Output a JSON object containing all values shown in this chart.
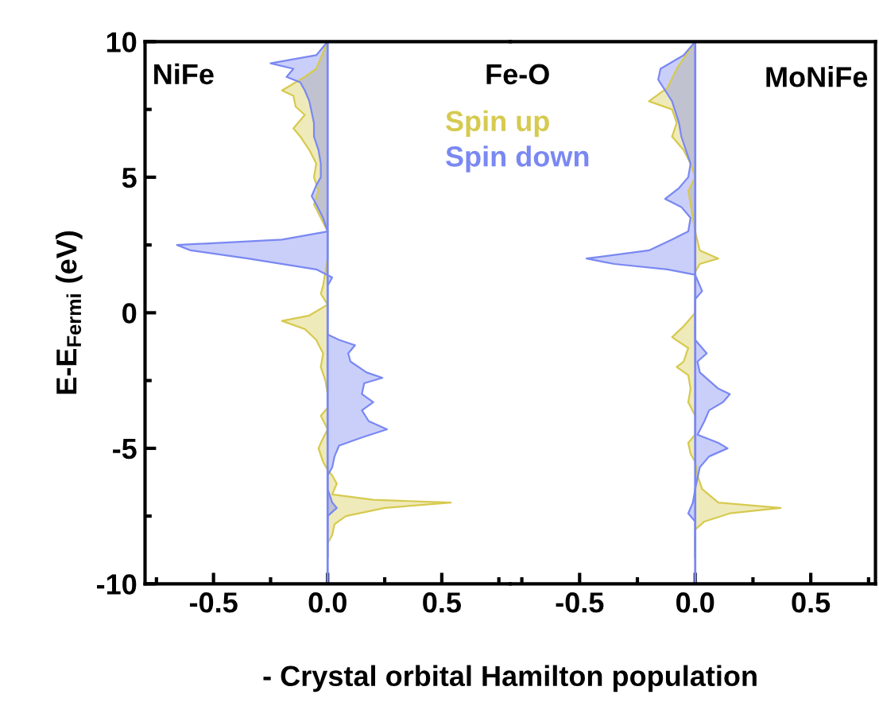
{
  "chart_data": [
    {
      "type": "area",
      "orientation": "horizontal",
      "title": "Fe-O",
      "xlabel": "- Crystal orbital Hamilton population",
      "ylabel": "E-E$_{Fermi}$ (eV)",
      "annotations": [
        "NiFe"
      ],
      "legend": "top right",
      "xlim": [
        -0.8,
        0.8
      ],
      "xticks": [
        {
          "value": -0.75,
          "label": null
        },
        {
          "value": -0.5,
          "label": "-0.5"
        },
        {
          "value": -0.25,
          "label": null
        },
        {
          "value": 0,
          "label": "0.0"
        },
        {
          "value": 0.25,
          "label": null
        },
        {
          "value": 0.5,
          "label": "0.5"
        },
        {
          "value": 0.75,
          "label": null
        }
      ],
      "ylim": [
        -10,
        10
      ],
      "yticks": [
        -10,
        {
          "value": -7.5,
          "label": null
        },
        -5,
        {
          "value": -2.5,
          "label": null
        },
        0,
        {
          "value": 2.5,
          "label": null
        },
        5,
        {
          "value": 7.5,
          "label": null
        },
        10
      ],
      "ref_lines": [
        {
          "axis": "x",
          "value": 0,
          "color": "#7a88f2"
        }
      ],
      "series": [
        {
          "name": "Spin up",
          "color": "#d6ca50",
          "x": [
            10,
            9,
            8.7,
            8.2,
            8.0,
            7.6,
            7.3,
            6.8,
            6.5,
            6.0,
            5.5,
            5.0,
            4.5,
            4.0,
            3.5,
            3.0,
            2.0,
            1.0,
            0.7,
            0.3,
            -0.1,
            -0.3,
            -0.6,
            -1,
            -1.5,
            -2,
            -2.5,
            -3,
            -3.5,
            -3.8,
            -4.3,
            -4.8,
            -5.0,
            -5.5,
            -5.8,
            -6.0,
            -6.3,
            -6.7,
            -6.9,
            -7.0,
            -7.2,
            -7.5,
            -7.8,
            -8.2,
            -8.5,
            -9
          ],
          "values": [
            0,
            -0.05,
            -0.1,
            -0.2,
            -0.15,
            -0.14,
            -0.1,
            -0.15,
            -0.12,
            -0.08,
            -0.05,
            -0.06,
            -0.04,
            -0.06,
            -0.03,
            0,
            0,
            -0.02,
            -0.03,
            0,
            -0.08,
            -0.2,
            -0.1,
            -0.05,
            -0.02,
            -0.03,
            -0.01,
            0,
            0,
            -0.03,
            0,
            -0.03,
            -0.04,
            -0.02,
            0,
            0.02,
            0.04,
            0.02,
            0.2,
            0.54,
            0.25,
            0.08,
            0.03,
            0.02,
            0,
            0
          ]
        },
        {
          "name": "Spin down",
          "color": "#7a88f2",
          "x": [
            10,
            9.5,
            9.2,
            9.0,
            8.7,
            8.5,
            8.2,
            7.8,
            7.0,
            6.5,
            6.0,
            5.5,
            5.0,
            4.7,
            4.3,
            4.0,
            3.5,
            3.0,
            2.7,
            2.5,
            2.3,
            2.0,
            1.6,
            1.3,
            1.0,
            -0.8,
            -1.0,
            -1.2,
            -1.5,
            -1.8,
            -2.2,
            -2.4,
            -2.6,
            -3.0,
            -3.3,
            -3.6,
            -4.0,
            -4.3,
            -4.6,
            -4.9,
            -5.3,
            -5.7,
            -6.0,
            -6.5,
            -7.0,
            -7.2,
            -7.5,
            -8,
            -9
          ],
          "values": [
            0,
            -0.05,
            -0.25,
            -0.15,
            -0.18,
            -0.12,
            -0.1,
            -0.08,
            -0.06,
            -0.06,
            -0.04,
            -0.03,
            -0.03,
            -0.05,
            -0.07,
            -0.05,
            -0.02,
            0,
            -0.2,
            -0.66,
            -0.6,
            -0.35,
            -0.05,
            0.02,
            0,
            0,
            0.05,
            0.12,
            0.09,
            0.1,
            0.17,
            0.24,
            0.16,
            0.15,
            0.2,
            0.15,
            0.18,
            0.26,
            0.15,
            0.05,
            0.03,
            0.02,
            0,
            0,
            0.02,
            0.04,
            0,
            0,
            0
          ]
        }
      ]
    },
    {
      "type": "area",
      "orientation": "horizontal",
      "annotations": [
        "MoNiFe"
      ],
      "tick_labels": "x",
      "xlim": [
        -0.8,
        0.78
      ],
      "xticks": [
        {
          "value": -0.75,
          "label": null
        },
        {
          "value": -0.5,
          "label": "-0.5"
        },
        {
          "value": -0.25,
          "label": null
        },
        {
          "value": 0,
          "label": "0.0"
        },
        {
          "value": 0.25,
          "label": null
        },
        {
          "value": 0.5,
          "label": "0.5"
        },
        {
          "value": 0.75,
          "label": null
        }
      ],
      "ylim": [
        -10,
        10
      ],
      "ref_lines": [
        {
          "axis": "x",
          "value": 0,
          "color": "#7a88f2"
        }
      ],
      "series": [
        {
          "color": "#d6ca50",
          "x": [
            10,
            9,
            8.3,
            7.8,
            7.5,
            7.0,
            6.5,
            6.0,
            5.5,
            5,
            4.5,
            4.0,
            3.5,
            3.0,
            2.3,
            2.0,
            1.8,
            1.5,
            1,
            0,
            -0.5,
            -0.9,
            -1.3,
            -1.8,
            -2.0,
            -2.3,
            -2.8,
            -3.3,
            -3.8,
            -4.5,
            -4.8,
            -5.2,
            -5.5,
            -6.0,
            -6.5,
            -7.0,
            -7.2,
            -7.4,
            -7.7,
            -8.0,
            -9
          ],
          "values": [
            0,
            -0.08,
            -0.12,
            -0.2,
            -0.1,
            -0.08,
            -0.1,
            -0.05,
            -0.02,
            0,
            -0.03,
            -0.02,
            -0.01,
            0,
            0.02,
            0.1,
            0.02,
            0,
            0,
            0,
            -0.05,
            -0.1,
            -0.03,
            -0.05,
            -0.08,
            -0.03,
            -0.02,
            -0.03,
            0,
            0,
            -0.03,
            -0.02,
            0,
            0.01,
            0.03,
            0.1,
            0.37,
            0.15,
            0.04,
            0,
            0
          ]
        },
        {
          "color": "#7a88f2",
          "x": [
            10,
            9.5,
            9.0,
            8.6,
            8.2,
            7.8,
            7.0,
            6.5,
            6.0,
            5.5,
            5.0,
            4.6,
            4.2,
            3.9,
            3.5,
            3.0,
            2.7,
            2.3,
            2.0,
            1.8,
            1.6,
            1.4,
            1.2,
            0.8,
            0.5,
            0,
            -1,
            -1.5,
            -1.8,
            -2.2,
            -2.8,
            -3.0,
            -3.3,
            -3.6,
            -4.0,
            -4.5,
            -4.8,
            -5.0,
            -5.3,
            -5.7,
            -6.5,
            -7.0,
            -7.4,
            -7.7,
            -8,
            -9
          ],
          "values": [
            0,
            -0.05,
            -0.15,
            -0.16,
            -0.13,
            -0.1,
            -0.07,
            -0.06,
            -0.04,
            -0.02,
            -0.03,
            -0.07,
            -0.13,
            -0.06,
            -0.02,
            -0.03,
            -0.1,
            -0.2,
            -0.47,
            -0.35,
            -0.12,
            0,
            0.01,
            0.03,
            0,
            0,
            0,
            0.05,
            0.01,
            0.02,
            0.1,
            0.15,
            0.12,
            0.06,
            0.04,
            0.01,
            0.1,
            0.14,
            0.06,
            0.02,
            0,
            -0.01,
            -0.03,
            0,
            0,
            0
          ]
        }
      ]
    }
  ]
}
